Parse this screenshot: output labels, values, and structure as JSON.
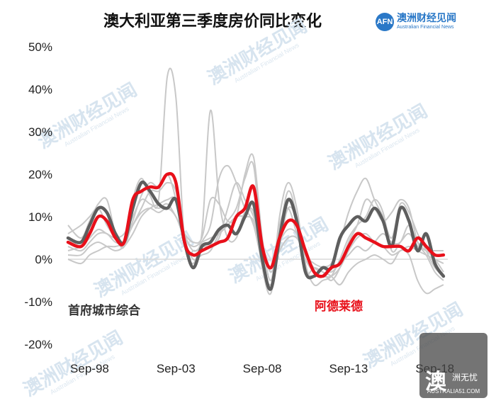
{
  "title": "澳大利亚第三季度房价同比变化",
  "brand": {
    "logo_text": "AFN",
    "name": "澳洲财经见闻",
    "sub": "Australian Financial News"
  },
  "watermark": {
    "text": "澳洲财经见闻",
    "sub": "Australian Financial News"
  },
  "corner_logo": {
    "big": "澳",
    "small": "洲无忧",
    "url": "AUSTRALIA51.COM"
  },
  "colors": {
    "highlight": "#e8101a",
    "composite": "#5e5e5e",
    "background_lines": "#c8c8c8",
    "zero_line": "#d9d9d9"
  },
  "chart_data": {
    "type": "line",
    "title": "澳大利亚第三季度房价同比变化",
    "x_ticks": [
      "Sep-98",
      "Sep-03",
      "Sep-08",
      "Sep-13",
      "Sep-18"
    ],
    "xlim": [
      "1997-06",
      "2019-06"
    ],
    "ylim": [
      -20,
      50
    ],
    "y_ticks": [
      "50%",
      "40%",
      "30%",
      "20%",
      "10%",
      "0%",
      "-10%",
      "-20%"
    ],
    "grid": false,
    "series": [
      {
        "name": "首府城市综合",
        "role": "composite",
        "x": [
          "1997-06",
          "1998-03",
          "1998-09",
          "1999-03",
          "1999-09",
          "2000-03",
          "2000-09",
          "2001-03",
          "2001-09",
          "2002-03",
          "2002-09",
          "2003-03",
          "2003-09",
          "2004-03",
          "2004-09",
          "2005-03",
          "2005-09",
          "2006-03",
          "2006-09",
          "2007-03",
          "2007-09",
          "2008-03",
          "2008-09",
          "2009-03",
          "2009-09",
          "2010-03",
          "2010-09",
          "2011-03",
          "2011-09",
          "2012-03",
          "2012-09",
          "2013-03",
          "2013-09",
          "2014-03",
          "2014-09",
          "2015-03",
          "2015-09",
          "2016-03",
          "2016-09",
          "2017-03",
          "2017-09",
          "2018-03",
          "2018-09",
          "2019-03"
        ],
        "values": [
          5,
          4,
          8,
          12,
          11,
          6,
          4,
          12,
          18,
          16,
          13,
          12,
          14,
          4,
          -2,
          3,
          4,
          7,
          8,
          6,
          10,
          13,
          0,
          -7,
          5,
          14,
          9,
          -3,
          -4,
          -2,
          -2,
          5,
          8,
          10,
          9,
          12,
          9,
          3,
          12,
          9,
          2,
          6,
          -1,
          -4
        ]
      },
      {
        "name": "阿德莱德",
        "role": "highlight",
        "x": [
          "1997-06",
          "1998-03",
          "1998-09",
          "1999-03",
          "1999-09",
          "2000-03",
          "2000-09",
          "2001-03",
          "2001-09",
          "2002-03",
          "2002-09",
          "2003-03",
          "2003-09",
          "2004-03",
          "2004-09",
          "2005-03",
          "2005-09",
          "2006-03",
          "2006-09",
          "2007-03",
          "2007-09",
          "2008-03",
          "2008-09",
          "2009-03",
          "2009-09",
          "2010-03",
          "2010-09",
          "2011-03",
          "2011-09",
          "2012-03",
          "2012-09",
          "2013-03",
          "2013-09",
          "2014-03",
          "2014-09",
          "2015-03",
          "2015-09",
          "2016-03",
          "2016-09",
          "2017-03",
          "2017-09",
          "2018-03",
          "2018-09",
          "2019-03"
        ],
        "values": [
          4,
          3,
          6,
          10,
          9,
          5,
          4,
          14,
          16,
          17,
          17,
          20,
          18,
          4,
          1,
          2,
          3,
          4,
          5,
          10,
          12,
          17,
          3,
          -2,
          5,
          9,
          8,
          2,
          -3,
          -4,
          -2,
          -1,
          3,
          6,
          5,
          4,
          3,
          3,
          3,
          2,
          5,
          3,
          1,
          1
        ]
      }
    ],
    "unlabeled_series_count": 6,
    "unlabeled_series": [
      [
        8,
        5,
        9,
        13,
        14,
        6,
        3,
        14,
        19,
        15,
        14,
        43,
        38,
        4,
        2,
        6,
        35,
        14,
        5,
        5,
        11,
        8,
        -1,
        -6,
        3,
        12,
        9,
        -3,
        -2,
        -3,
        -5,
        -2,
        4,
        8,
        14,
        12,
        9,
        11,
        14,
        12,
        4,
        1,
        -3,
        -5
      ],
      [
        6,
        8,
        10,
        12,
        8,
        5,
        3,
        9,
        15,
        18,
        17,
        20,
        14,
        3,
        -1,
        4,
        8,
        19,
        22,
        18,
        12,
        11,
        -2,
        -8,
        6,
        16,
        10,
        -2,
        -4,
        -2,
        -1,
        4,
        11,
        16,
        19,
        14,
        10,
        5,
        13,
        11,
        6,
        2,
        -2,
        -4
      ],
      [
        2,
        3,
        5,
        7,
        6,
        5,
        6,
        10,
        14,
        13,
        12,
        13,
        10,
        6,
        4,
        5,
        14,
        13,
        9,
        10,
        20,
        24,
        5,
        -5,
        8,
        12,
        6,
        0,
        -3,
        -4,
        -4,
        -2,
        2,
        5,
        6,
        4,
        3,
        1,
        2,
        3,
        2,
        1,
        0,
        -1
      ],
      [
        3,
        2,
        4,
        6,
        6,
        4,
        4,
        8,
        12,
        16,
        16,
        18,
        16,
        5,
        0,
        1,
        2,
        6,
        9,
        12,
        19,
        22,
        2,
        -7,
        10,
        18,
        12,
        -1,
        -6,
        -5,
        -4,
        0,
        5,
        8,
        10,
        14,
        11,
        2,
        4,
        6,
        3,
        2,
        0,
        -3
      ],
      [
        1,
        1,
        3,
        4,
        3,
        2,
        3,
        6,
        10,
        12,
        13,
        14,
        14,
        6,
        2,
        3,
        3,
        5,
        12,
        18,
        14,
        10,
        3,
        -3,
        2,
        5,
        5,
        1,
        -2,
        -3,
        -4,
        -6,
        -3,
        -1,
        0,
        1,
        0,
        -1,
        2,
        1,
        -5,
        -8,
        -7,
        -6
      ],
      [
        0,
        -1,
        1,
        2,
        3,
        3,
        4,
        8,
        11,
        12,
        11,
        12,
        10,
        5,
        3,
        4,
        5,
        6,
        8,
        10,
        10,
        9,
        1,
        -2,
        4,
        7,
        6,
        1,
        -1,
        -2,
        -3,
        -1,
        1,
        3,
        2,
        4,
        6,
        4,
        4,
        8,
        4,
        2,
        2,
        2
      ]
    ]
  }
}
